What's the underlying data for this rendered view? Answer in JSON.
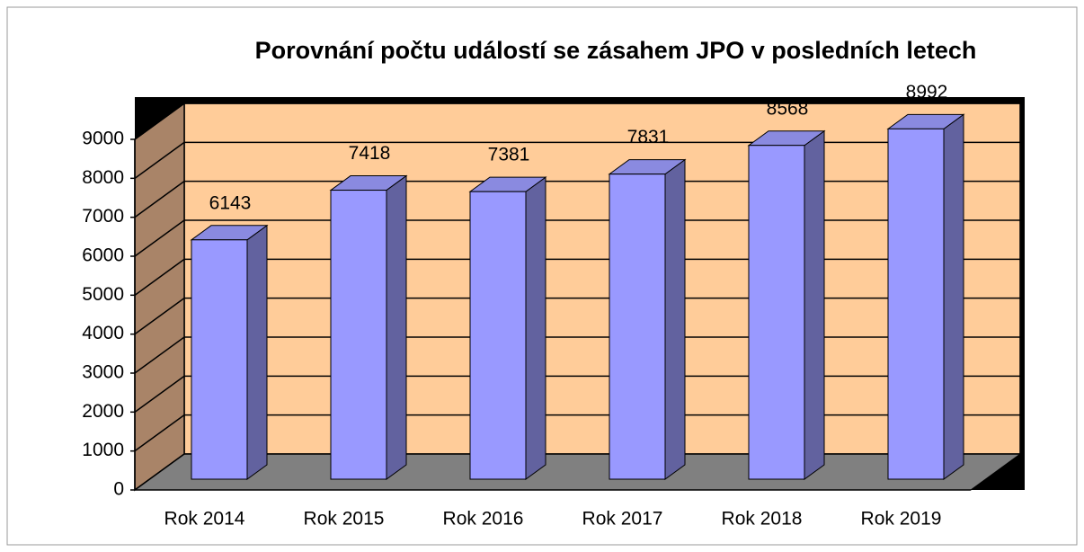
{
  "chart_data": {
    "type": "bar3d",
    "title": "Porovnání počtu událostí se zásahem JPO v posledních letech",
    "categories": [
      "Rok 2014",
      "Rok 2015",
      "Rok 2016",
      "Rok 2017",
      "Rok 2018",
      "Rok 2019"
    ],
    "values": [
      6143,
      7418,
      7381,
      7831,
      8568,
      8992
    ],
    "color": "#9999ff",
    "ylim": [
      0,
      9000
    ],
    "yticks": [
      0,
      1000,
      2000,
      3000,
      4000,
      5000,
      6000,
      7000,
      8000,
      9000
    ],
    "grid": true
  }
}
